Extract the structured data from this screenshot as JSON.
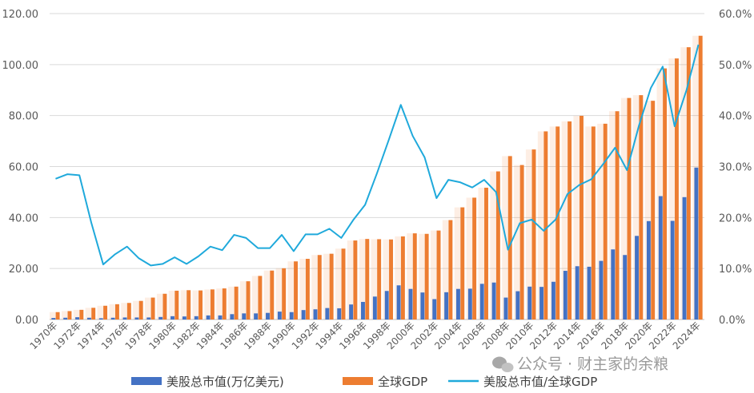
{
  "chart_data": {
    "type": "bar",
    "title": "",
    "categories": [
      "1970年",
      "1971年",
      "1972年",
      "1973年",
      "1974年",
      "1975年",
      "1976年",
      "1977年",
      "1978年",
      "1979年",
      "1980年",
      "1981年",
      "1982年",
      "1983年",
      "1984年",
      "1985年",
      "1986年",
      "1987年",
      "1988年",
      "1989年",
      "1990年",
      "1991年",
      "1992年",
      "1993年",
      "1994年",
      "1995年",
      "1996年",
      "1997年",
      "1998年",
      "1999年",
      "2000年",
      "2001年",
      "2002年",
      "2003年",
      "2004年",
      "2005年",
      "2006年",
      "2007年",
      "2008年",
      "2009年",
      "2010年",
      "2011年",
      "2012年",
      "2013年",
      "2014年",
      "2015年",
      "2016年",
      "2017年",
      "2018年",
      "2019年",
      "2020年",
      "2021年",
      "2022年",
      "2023年",
      "2024年"
    ],
    "x_tick_labels": [
      "1970年",
      "1972年",
      "1974年",
      "1976年",
      "1978年",
      "1980年",
      "1982年",
      "1984年",
      "1986年",
      "1988年",
      "1990年",
      "1992年",
      "1994年",
      "1996年",
      "1998年",
      "2000年",
      "2002年",
      "2004年",
      "2006年",
      "2008年",
      "2010年",
      "2012年",
      "2014年",
      "2016年",
      "2018年",
      "2020年",
      "2022年",
      "2024年"
    ],
    "y_left": {
      "ylim": [
        0,
        120
      ],
      "ticks": [
        "0.00",
        "20.00",
        "40.00",
        "60.00",
        "80.00",
        "100.00",
        "120.00"
      ]
    },
    "y_right": {
      "ylim": [
        0,
        60
      ],
      "ticks": [
        "0.0%",
        "10.0%",
        "20.0%",
        "30.0%",
        "40.0%",
        "50.0%",
        "60.0%"
      ]
    },
    "grid": true,
    "legend_position": "bottom",
    "series": [
      {
        "name": "美股总市值(万亿美元)",
        "kind": "bar",
        "axis": "left",
        "color": "#4472C4",
        "values": [
          0.6,
          0.7,
          0.9,
          0.7,
          0.5,
          0.7,
          0.8,
          0.8,
          0.8,
          1.0,
          1.3,
          1.2,
          1.3,
          1.6,
          1.6,
          2.1,
          2.4,
          2.4,
          2.6,
          3.1,
          2.9,
          3.7,
          4.0,
          4.5,
          4.4,
          5.9,
          6.9,
          9.0,
          11.2,
          13.4,
          12.0,
          10.6,
          8.0,
          10.7,
          12.0,
          12.1,
          14.0,
          14.5,
          8.6,
          11.1,
          12.9,
          12.8,
          14.8,
          19.1,
          20.9,
          20.7,
          23.0,
          27.5,
          25.3,
          32.8,
          38.6,
          48.4,
          38.7,
          48.0,
          59.6
        ]
      },
      {
        "name": "全球GDP",
        "kind": "bar",
        "axis": "left",
        "color": "#ED7D31",
        "values": [
          2.9,
          3.3,
          3.8,
          4.6,
          5.4,
          6.0,
          6.5,
          7.3,
          8.6,
          10.1,
          11.3,
          11.5,
          11.4,
          11.8,
          12.2,
          12.9,
          15.0,
          17.1,
          19.2,
          20.1,
          22.8,
          23.8,
          25.3,
          25.8,
          27.8,
          31.0,
          31.6,
          31.5,
          31.4,
          32.6,
          33.8,
          33.6,
          34.9,
          39.0,
          44.0,
          47.8,
          51.7,
          58.1,
          64.1,
          60.6,
          66.7,
          73.8,
          75.7,
          77.7,
          79.9,
          75.7,
          76.8,
          81.7,
          86.9,
          88.0,
          85.8,
          98.5,
          102.4,
          106.8,
          111.3
        ]
      },
      {
        "name": "美股总市值/全球GDP",
        "kind": "line",
        "axis": "right",
        "color": "#1FA9DB",
        "values": [
          27.6,
          28.5,
          28.3,
          19.0,
          10.8,
          12.8,
          14.3,
          12.0,
          10.6,
          10.9,
          12.2,
          10.9,
          12.4,
          14.3,
          13.6,
          16.6,
          16.0,
          14.0,
          14.0,
          16.6,
          13.4,
          16.7,
          16.7,
          17.8,
          16.0,
          19.5,
          22.5,
          28.7,
          35.3,
          42.1,
          36.0,
          31.8,
          23.8,
          27.4,
          26.9,
          25.9,
          27.4,
          25.0,
          13.7,
          18.9,
          19.6,
          17.4,
          19.6,
          24.6,
          26.4,
          27.5,
          30.5,
          33.7,
          29.3,
          38.0,
          45.4,
          49.6,
          37.9,
          45.0,
          53.9
        ]
      }
    ]
  },
  "watermark": "公众号 · 财主家的余粮"
}
